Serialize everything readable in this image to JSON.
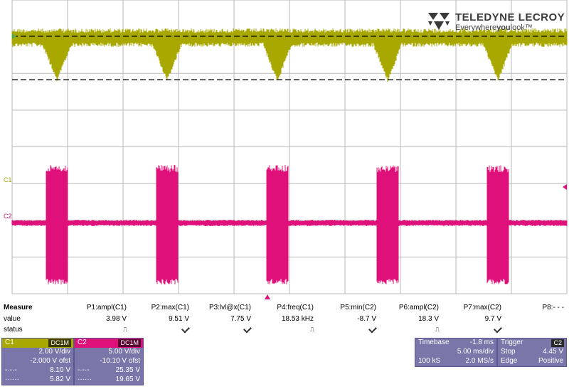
{
  "brand": {
    "name": "TELEDYNE LECROY",
    "tagline_pre": "Everywhere",
    "tagline_bold": "you",
    "tagline_post": "look™"
  },
  "colors": {
    "c1": "#a8a800",
    "c2": "#e0107a",
    "grid": "#b8b8b8",
    "panel": "#7a76aa"
  },
  "channels": {
    "c1_label": "C1",
    "c2_label": "C2"
  },
  "measure": {
    "title": "Measure",
    "value_label": "value",
    "status_label": "status",
    "params": [
      {
        "name": "P1:ampl(C1)",
        "value": "3.98 V",
        "status": "pulse"
      },
      {
        "name": "P2:max(C1)",
        "value": "9.51 V",
        "status": "check"
      },
      {
        "name": "P3:lvl@x(C1)",
        "value": "7.75 V",
        "status": "check"
      },
      {
        "name": "P4:freq(C1)",
        "value": "18.53 kHz",
        "status": "pulse"
      },
      {
        "name": "P5:min(C2)",
        "value": "-8.7 V",
        "status": "check"
      },
      {
        "name": "P6:ampl(C2)",
        "value": "18.3 V",
        "status": "pulse"
      },
      {
        "name": "P7:max(C2)",
        "value": "9.7 V",
        "status": "check"
      },
      {
        "name": "P8:- - -",
        "value": "",
        "status": ""
      }
    ]
  },
  "c1box": {
    "title": "C1",
    "coupling": "DC1M",
    "vdiv": "2.00 V/div",
    "offset": "-2.000 V ofst",
    "cursor1_value": "8.10 V",
    "cursor2_value": "5.82 V"
  },
  "c2box": {
    "title": "C2",
    "coupling": "DC1M",
    "vdiv": "5.00 V/div",
    "offset": "-10.10 V ofst",
    "cursor1_value": "25.35 V",
    "cursor2_value": "19.65 V"
  },
  "timebase": {
    "title": "Timebase",
    "delay": "-1.8 ms",
    "tdiv": "5.00 ms/div",
    "samples": "100 kS",
    "rate": "2.0 MS/s"
  },
  "trigger": {
    "title": "Trigger",
    "source": "C2",
    "mode": "Stop",
    "level": "4.45 V",
    "type": "Edge",
    "slope": "Positive"
  }
}
